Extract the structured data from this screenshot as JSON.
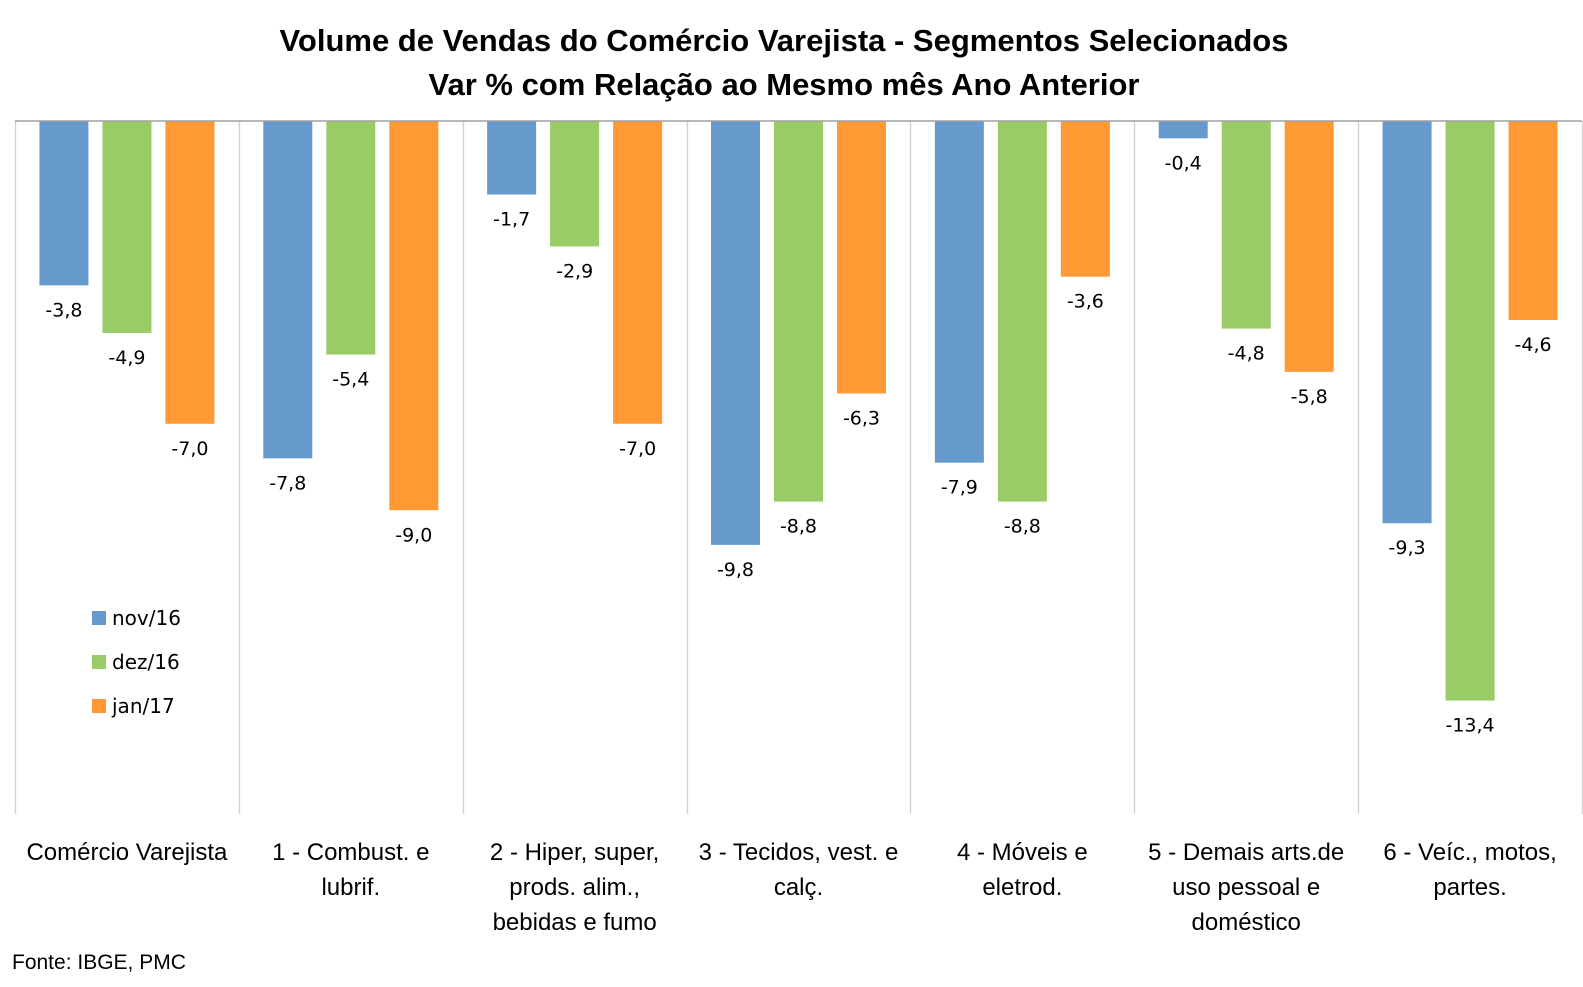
{
  "chart_data": {
    "type": "bar",
    "title": [
      "Volume de Vendas do Comércio Varejista - Segmentos Selecionados",
      "Var % com Relação ao Mesmo mês Ano Anterior"
    ],
    "xlabel": "",
    "ylabel": "",
    "ylim": [
      -16,
      0
    ],
    "grid": false,
    "legend_position": "left",
    "categories": [
      [
        "Comércio Varejista"
      ],
      [
        "1 - Combust. e",
        "lubrif."
      ],
      [
        "2 - Hiper, super,",
        "prods. alim.,",
        "bebidas e fumo"
      ],
      [
        "3 - Tecidos, vest. e",
        "calç."
      ],
      [
        "4 - Móveis e",
        "eletrod."
      ],
      [
        "5 - Demais arts.de",
        "uso pessoal e",
        "doméstico"
      ],
      [
        "6 - Veíc., motos,",
        "partes."
      ]
    ],
    "series": [
      {
        "name": "nov/16",
        "color": "#6699cc",
        "values": [
          -3.8,
          -7.8,
          -1.7,
          -9.8,
          -7.9,
          -0.4,
          -9.3
        ],
        "labels": [
          "-3,8",
          "-7,8",
          "-1,7",
          "-9,8",
          "-7,9",
          "-0,4",
          "-9,3"
        ]
      },
      {
        "name": "dez/16",
        "color": "#99cc66",
        "values": [
          -4.9,
          -5.4,
          -2.9,
          -8.8,
          -8.8,
          -4.8,
          -13.4
        ],
        "labels": [
          "-4,9",
          "-5,4",
          "-2,9",
          "-8,8",
          "-8,8",
          "-4,8",
          "-13,4"
        ]
      },
      {
        "name": "jan/17",
        "color": "#ff9933",
        "values": [
          -7.0,
          -9.0,
          -7.0,
          -6.3,
          -3.6,
          -5.8,
          -4.6
        ],
        "labels": [
          "-7,0",
          "-9,0",
          "-7,0",
          "-6,3",
          "-3,6",
          "-5,8",
          "-4,6"
        ]
      }
    ],
    "source": "Fonte: IBGE, PMC"
  }
}
